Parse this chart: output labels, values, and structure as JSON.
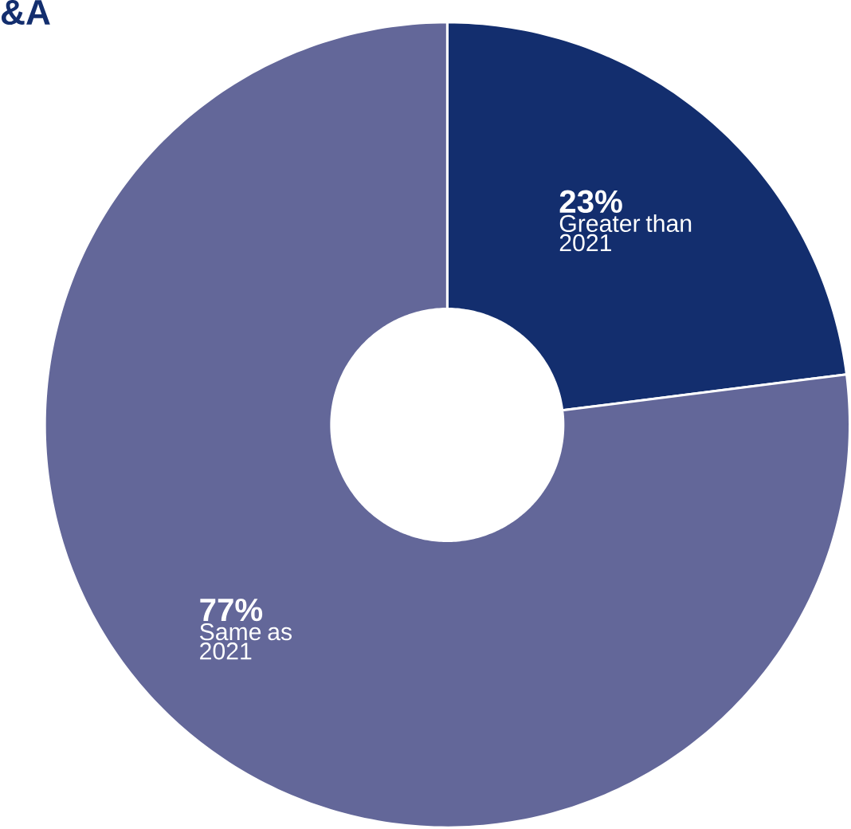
{
  "chart_data": {
    "type": "donut",
    "title": "&A",
    "categories": [
      "Greater than 2021",
      "Same as 2021"
    ],
    "values": [
      23,
      77
    ],
    "colors": [
      "#132e6e",
      "#636799"
    ],
    "value_labels": [
      "23%",
      "77%"
    ]
  }
}
